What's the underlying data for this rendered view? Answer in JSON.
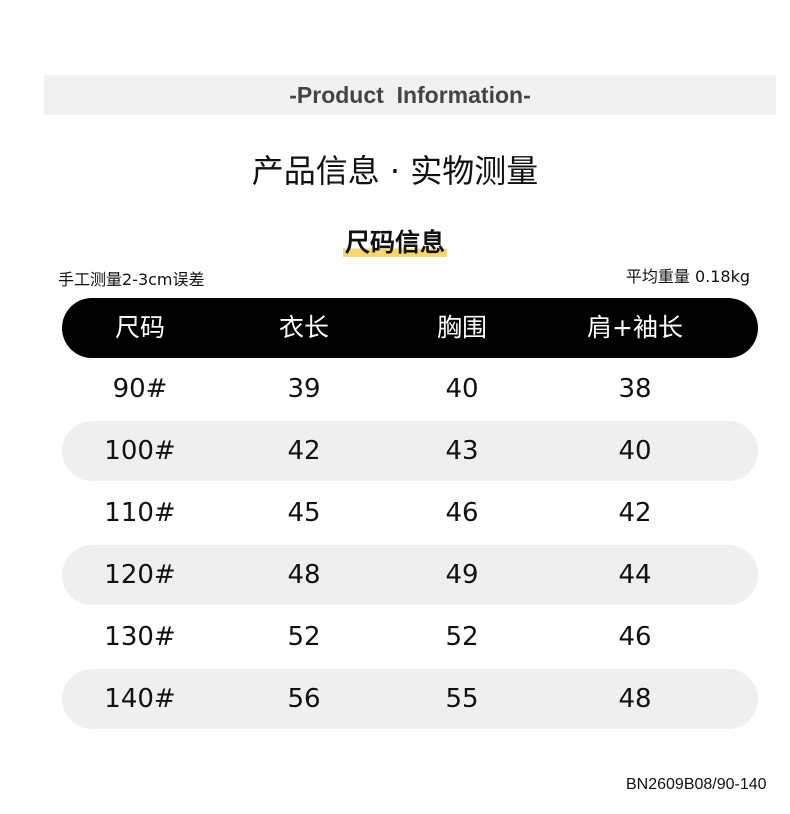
{
  "banner": "-Product  Information-",
  "title": "产品信息 · 实物测量",
  "subtitle": "尺码信息",
  "note_left": "手工测量2-3cm误差",
  "note_right": "平均重量 0.18kg",
  "table": {
    "headers": [
      "尺码",
      "衣长",
      "胸围",
      "肩+袖长"
    ],
    "rows": [
      [
        "90#",
        "39",
        "40",
        "38"
      ],
      [
        "100#",
        "42",
        "43",
        "40"
      ],
      [
        "110#",
        "45",
        "46",
        "42"
      ],
      [
        "120#",
        "48",
        "49",
        "44"
      ],
      [
        "130#",
        "52",
        "52",
        "46"
      ],
      [
        "140#",
        "56",
        "55",
        "48"
      ]
    ]
  },
  "product_code": "BN2609B08/90-140"
}
